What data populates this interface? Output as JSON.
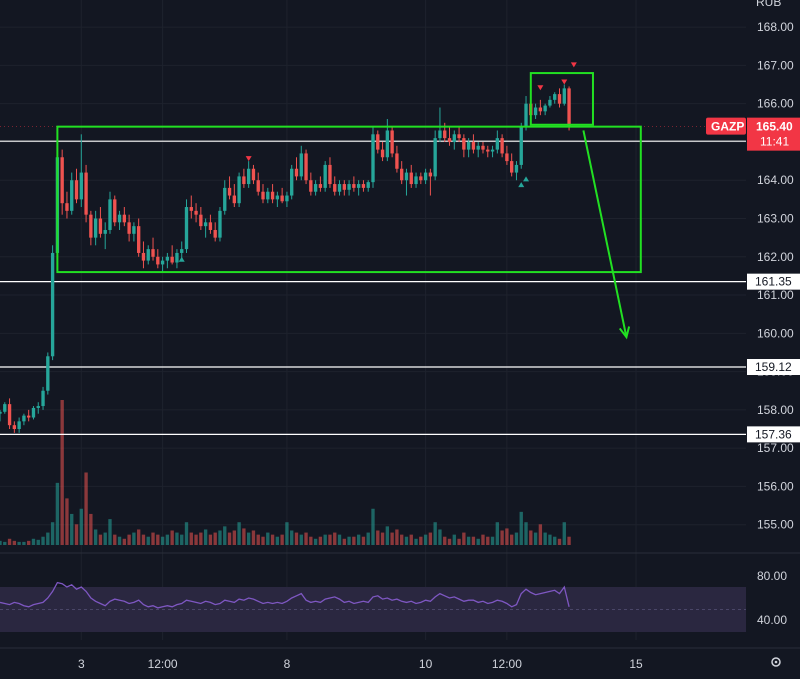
{
  "colors": {
    "background": "#131722",
    "up": "#26a69a",
    "down": "#ef5350",
    "rsi_line": "#7e57c2",
    "rsi_band": "#2a2740",
    "box": "#22e022",
    "level_line": "#ffffff",
    "axis_text": "#d1d4dc",
    "price_tag": "#f23645"
  },
  "top_axis_label": "RUB",
  "settings_icon": "gear-icon",
  "chart_data": {
    "type": "candlestick",
    "symbol": "GAZP",
    "current_price": "165.40",
    "countdown": "11:41",
    "y_ticks": [
      "168.00",
      "167.00",
      "166.00",
      "165.00",
      "164.00",
      "163.00",
      "162.00",
      "161.00",
      "160.00",
      "159.00",
      "158.00",
      "157.00",
      "156.00",
      "155.00"
    ],
    "ylim": [
      154.6,
      168.5
    ],
    "x_ticks": [
      {
        "label": "3",
        "index": 17
      },
      {
        "label": "12:00",
        "index": 34
      },
      {
        "label": "8",
        "index": 60
      },
      {
        "label": "10",
        "index": 89
      },
      {
        "label": "12:00",
        "index": 106
      },
      {
        "label": "15",
        "index": 133
      }
    ],
    "xlim": [
      0,
      156
    ],
    "level_lines": [
      {
        "label": "165.02",
        "value": 165.02
      },
      {
        "label": "161.35",
        "value": 161.35
      },
      {
        "label": "159.12",
        "value": 159.12
      },
      {
        "label": "157.36",
        "value": 157.36
      }
    ],
    "boxes": [
      {
        "from_index": 12,
        "to_index": 134,
        "low": 161.6,
        "high": 165.4
      },
      {
        "from_index": 111,
        "to_index": 124,
        "low": 165.45,
        "high": 166.8
      }
    ],
    "arrow": {
      "from_index": 122,
      "from_value": 165.3,
      "to_index": 131,
      "to_value": 159.9
    },
    "markers_up": [
      {
        "index": 38,
        "value": 162.0
      },
      {
        "index": 109,
        "value": 163.95
      },
      {
        "index": 110,
        "value": 164.1
      }
    ],
    "markers_down": [
      {
        "index": 52,
        "value": 164.5
      },
      {
        "index": 113,
        "value": 166.35
      },
      {
        "index": 118,
        "value": 166.5
      },
      {
        "index": 120,
        "value": 166.95
      }
    ],
    "candles": [
      [
        157.9,
        158.0,
        157.7,
        157.95
      ],
      [
        157.95,
        158.2,
        157.9,
        158.15
      ],
      [
        158.15,
        158.3,
        157.5,
        157.6
      ],
      [
        157.6,
        157.7,
        157.4,
        157.5
      ],
      [
        157.5,
        157.8,
        157.4,
        157.7
      ],
      [
        157.7,
        157.9,
        157.6,
        157.85
      ],
      [
        157.85,
        158.0,
        157.7,
        157.8
      ],
      [
        157.8,
        158.1,
        157.75,
        158.05
      ],
      [
        158.05,
        158.2,
        157.9,
        158.1
      ],
      [
        158.1,
        158.6,
        158.0,
        158.5
      ],
      [
        158.5,
        159.5,
        158.4,
        159.4
      ],
      [
        159.4,
        162.3,
        159.3,
        162.1
      ],
      [
        162.1,
        164.9,
        162.0,
        164.6
      ],
      [
        164.6,
        164.8,
        163.1,
        163.4
      ],
      [
        163.4,
        163.7,
        163.0,
        163.2
      ],
      [
        163.2,
        164.2,
        163.1,
        164.0
      ],
      [
        164.0,
        164.3,
        163.4,
        163.5
      ],
      [
        163.5,
        165.2,
        163.3,
        164.2
      ],
      [
        164.2,
        164.4,
        162.9,
        163.1
      ],
      [
        163.1,
        163.2,
        162.3,
        162.5
      ],
      [
        162.5,
        163.2,
        162.3,
        163.0
      ],
      [
        163.0,
        163.3,
        162.5,
        162.6
      ],
      [
        162.6,
        162.9,
        162.2,
        162.7
      ],
      [
        162.7,
        163.7,
        162.6,
        163.5
      ],
      [
        163.5,
        163.6,
        162.8,
        162.9
      ],
      [
        162.9,
        163.2,
        162.7,
        163.1
      ],
      [
        163.1,
        163.3,
        162.8,
        162.9
      ],
      [
        162.9,
        163.1,
        162.4,
        162.6
      ],
      [
        162.6,
        162.9,
        162.4,
        162.8
      ],
      [
        162.8,
        163.0,
        162.0,
        162.1
      ],
      [
        162.1,
        162.4,
        161.7,
        161.9
      ],
      [
        161.9,
        162.3,
        161.8,
        162.2
      ],
      [
        162.2,
        162.5,
        161.9,
        162.0
      ],
      [
        162.0,
        162.2,
        161.7,
        161.8
      ],
      [
        161.8,
        162.0,
        161.6,
        161.9
      ],
      [
        161.9,
        162.1,
        161.7,
        162.0
      ],
      [
        162.0,
        162.3,
        161.8,
        161.85
      ],
      [
        161.85,
        162.2,
        161.7,
        162.1
      ],
      [
        162.1,
        162.4,
        161.9,
        162.2
      ],
      [
        162.2,
        163.5,
        162.1,
        163.3
      ],
      [
        163.3,
        163.6,
        163.0,
        163.2
      ],
      [
        163.2,
        163.4,
        162.9,
        163.1
      ],
      [
        163.1,
        163.3,
        162.7,
        162.8
      ],
      [
        162.8,
        163.0,
        162.5,
        162.9
      ],
      [
        162.9,
        163.1,
        162.6,
        162.7
      ],
      [
        162.7,
        162.9,
        162.4,
        162.5
      ],
      [
        162.5,
        163.3,
        162.4,
        163.2
      ],
      [
        163.2,
        164.0,
        163.1,
        163.8
      ],
      [
        163.8,
        164.1,
        163.5,
        163.6
      ],
      [
        163.6,
        163.9,
        163.3,
        163.4
      ],
      [
        163.4,
        164.2,
        163.3,
        164.1
      ],
      [
        164.1,
        164.3,
        163.8,
        163.9
      ],
      [
        163.9,
        164.5,
        163.8,
        164.3
      ],
      [
        164.3,
        164.4,
        163.9,
        164.0
      ],
      [
        164.0,
        164.2,
        163.6,
        163.7
      ],
      [
        163.7,
        163.9,
        163.4,
        163.5
      ],
      [
        163.5,
        163.8,
        163.4,
        163.7
      ],
      [
        163.7,
        163.9,
        163.4,
        163.5
      ],
      [
        163.5,
        163.7,
        163.3,
        163.6
      ],
      [
        163.6,
        163.8,
        163.4,
        163.45
      ],
      [
        163.45,
        163.7,
        163.3,
        163.6
      ],
      [
        163.6,
        164.4,
        163.5,
        164.3
      ],
      [
        164.3,
        164.6,
        164.0,
        164.1
      ],
      [
        164.1,
        164.9,
        164.0,
        164.7
      ],
      [
        164.7,
        164.8,
        163.9,
        164.0
      ],
      [
        164.0,
        164.2,
        163.6,
        163.7
      ],
      [
        163.7,
        164.0,
        163.6,
        163.9
      ],
      [
        163.9,
        164.1,
        163.7,
        163.8
      ],
      [
        163.8,
        164.5,
        163.7,
        164.4
      ],
      [
        164.4,
        164.6,
        163.8,
        163.9
      ],
      [
        163.9,
        164.1,
        163.6,
        163.7
      ],
      [
        163.7,
        164.0,
        163.6,
        163.9
      ],
      [
        163.9,
        164.0,
        163.6,
        163.75
      ],
      [
        163.75,
        164.0,
        163.6,
        163.9
      ],
      [
        163.9,
        164.1,
        163.7,
        163.8
      ],
      [
        163.8,
        164.0,
        163.6,
        163.9
      ],
      [
        163.9,
        164.0,
        163.7,
        163.8
      ],
      [
        163.8,
        164.0,
        163.7,
        163.95
      ],
      [
        163.95,
        165.4,
        163.8,
        165.2
      ],
      [
        165.2,
        165.3,
        164.7,
        164.8
      ],
      [
        164.8,
        165.0,
        164.5,
        164.6
      ],
      [
        164.6,
        165.6,
        164.5,
        165.3
      ],
      [
        165.3,
        165.4,
        164.6,
        164.7
      ],
      [
        164.7,
        164.9,
        164.2,
        164.3
      ],
      [
        164.3,
        164.5,
        163.9,
        164.0
      ],
      [
        164.0,
        164.3,
        163.6,
        164.2
      ],
      [
        164.2,
        164.4,
        163.8,
        163.9
      ],
      [
        163.9,
        164.2,
        163.8,
        164.1
      ],
      [
        164.1,
        164.2,
        163.9,
        164.0
      ],
      [
        164.0,
        164.3,
        163.9,
        164.2
      ],
      [
        164.2,
        164.3,
        163.6,
        164.1
      ],
      [
        164.1,
        165.3,
        164.0,
        165.1
      ],
      [
        165.1,
        165.9,
        165.0,
        165.3
      ],
      [
        165.3,
        165.5,
        165.0,
        165.1
      ],
      [
        165.1,
        165.4,
        164.9,
        165.0
      ],
      [
        165.0,
        165.3,
        164.8,
        165.2
      ],
      [
        165.2,
        165.4,
        165.0,
        165.1
      ],
      [
        165.1,
        165.2,
        164.6,
        164.8
      ],
      [
        164.8,
        165.1,
        164.6,
        165.0
      ],
      [
        165.0,
        165.2,
        164.7,
        164.8
      ],
      [
        164.8,
        165.0,
        164.6,
        164.9
      ],
      [
        164.9,
        165.0,
        164.7,
        164.8
      ],
      [
        164.8,
        164.9,
        164.6,
        164.75
      ],
      [
        164.75,
        164.9,
        164.6,
        164.8
      ],
      [
        164.8,
        165.3,
        164.7,
        165.1
      ],
      [
        165.1,
        165.2,
        164.6,
        164.7
      ],
      [
        164.7,
        164.9,
        164.4,
        164.5
      ],
      [
        164.5,
        164.7,
        164.1,
        164.2
      ],
      [
        164.2,
        164.5,
        164.0,
        164.4
      ],
      [
        164.4,
        165.5,
        164.3,
        165.4
      ],
      [
        165.4,
        166.2,
        165.3,
        166.0
      ],
      [
        166.0,
        166.1,
        165.6,
        165.7
      ],
      [
        165.7,
        166.0,
        165.6,
        165.9
      ],
      [
        165.9,
        166.1,
        165.7,
        165.8
      ],
      [
        165.8,
        166.0,
        165.7,
        165.95
      ],
      [
        165.95,
        166.2,
        165.9,
        166.1
      ],
      [
        166.1,
        166.3,
        166.0,
        166.25
      ],
      [
        166.25,
        166.4,
        165.9,
        166.0
      ],
      [
        166.0,
        166.5,
        165.95,
        166.4
      ],
      [
        166.4,
        166.45,
        165.3,
        165.4
      ]
    ],
    "volume": [
      4,
      3,
      6,
      4,
      3,
      3,
      4,
      6,
      5,
      8,
      12,
      22,
      60,
      140,
      45,
      30,
      20,
      35,
      70,
      30,
      15,
      10,
      12,
      25,
      10,
      8,
      6,
      10,
      12,
      15,
      10,
      8,
      12,
      10,
      8,
      10,
      14,
      12,
      10,
      22,
      12,
      10,
      12,
      15,
      10,
      12,
      14,
      18,
      12,
      14,
      22,
      16,
      12,
      14,
      10,
      8,
      12,
      10,
      8,
      10,
      22,
      14,
      12,
      10,
      12,
      8,
      6,
      8,
      10,
      10,
      12,
      10,
      6,
      8,
      8,
      10,
      8,
      12,
      35,
      14,
      12,
      18,
      12,
      15,
      10,
      8,
      10,
      6,
      8,
      10,
      12,
      22,
      15,
      8,
      6,
      10,
      6,
      12,
      8,
      8,
      6,
      10,
      8,
      8,
      22,
      14,
      16,
      10,
      12,
      32,
      22,
      14,
      12,
      20,
      12,
      10,
      8,
      6,
      22,
      8
    ],
    "rsi_ticks": [
      "80.00",
      "40.00"
    ],
    "rsi_band": [
      40,
      70
    ],
    "rsi_midline": 50,
    "rsi": [
      56,
      55,
      54,
      56,
      55,
      53,
      52,
      54,
      55,
      56,
      60,
      66,
      74,
      73,
      70,
      72,
      68,
      70,
      66,
      60,
      57,
      55,
      53,
      57,
      59,
      58,
      57,
      55,
      56,
      58,
      54,
      52,
      53,
      51,
      52,
      53,
      52,
      54,
      55,
      58,
      57,
      56,
      55,
      57,
      56,
      54,
      55,
      58,
      57,
      56,
      59,
      58,
      60,
      59,
      57,
      55,
      56,
      55,
      56,
      55,
      57,
      60,
      62,
      64,
      58,
      56,
      57,
      56,
      59,
      60,
      61,
      59,
      56,
      57,
      55,
      56,
      57,
      56,
      61,
      62,
      59,
      60,
      58,
      59,
      57,
      56,
      57,
      55,
      56,
      58,
      57,
      61,
      64,
      62,
      60,
      61,
      59,
      57,
      58,
      58,
      56,
      57,
      55,
      56,
      58,
      57,
      55,
      52,
      54,
      64,
      68,
      65,
      63,
      64,
      65,
      66,
      67,
      64,
      70,
      52
    ]
  }
}
